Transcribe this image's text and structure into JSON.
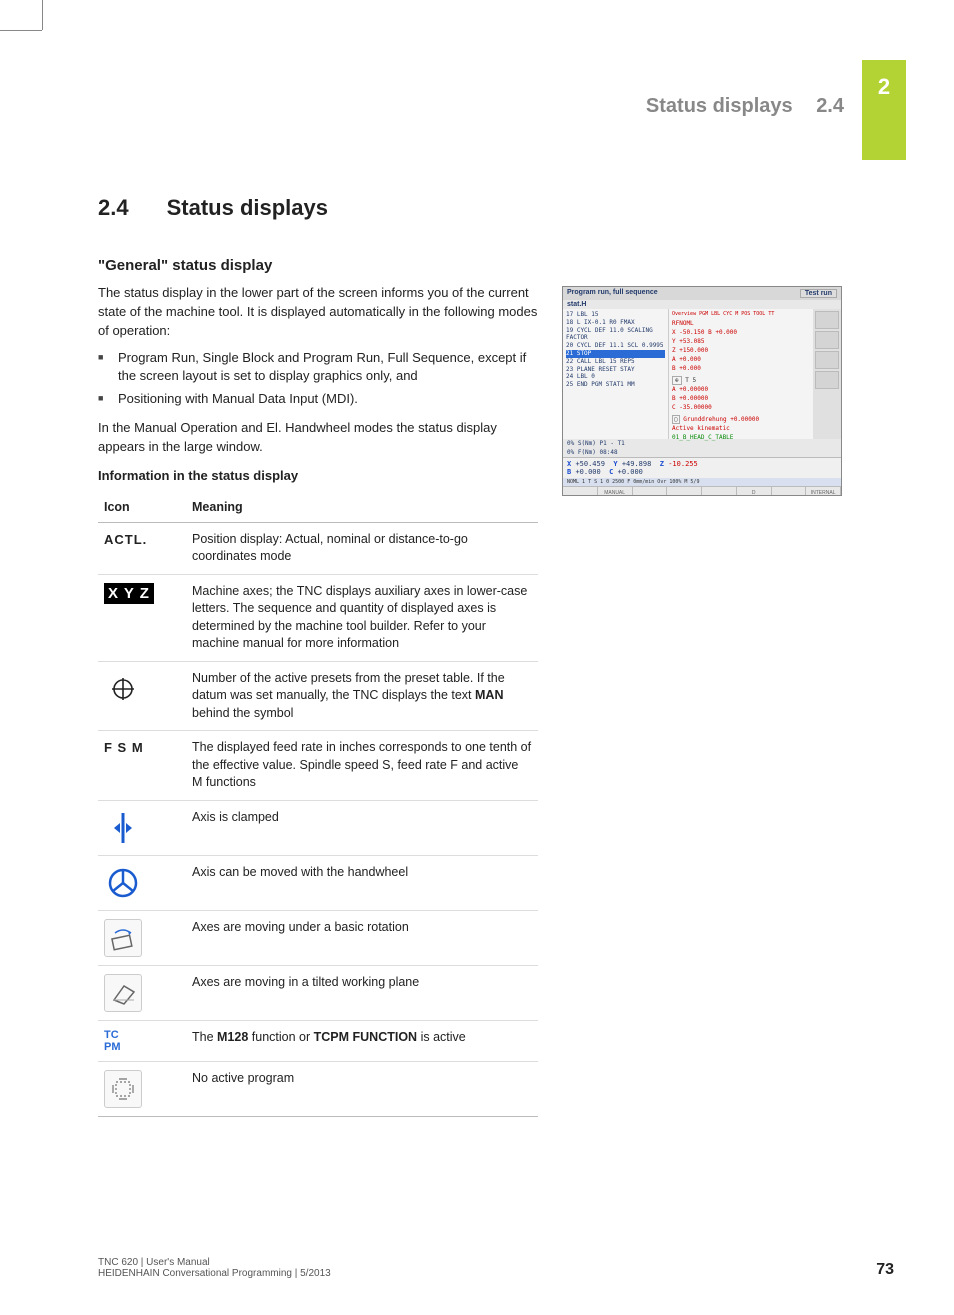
{
  "chapter_tab": "2",
  "running_head": {
    "title": "Status displays",
    "num": "2.4"
  },
  "heading": {
    "num": "2.4",
    "title": "Status displays"
  },
  "subheading": "\"General\" status display",
  "intro": "The status display in the lower part of the screen informs you of the current state of the machine tool. It is displayed automatically in the following modes of operation:",
  "bullets": [
    "Program Run, Single Block and Program Run, Full Sequence, except if the screen layout is set to display graphics only, and",
    "Positioning with Manual Data Input (MDI)."
  ],
  "after_bullets": "In the Manual Operation and El. Handwheel modes the status display appears in the large window.",
  "table_caption": "Information in the status display",
  "table": {
    "headers": [
      "Icon",
      "Meaning"
    ],
    "rows": [
      {
        "icon_type": "text",
        "icon_label": "ACTL.",
        "meaning": "Position display: Actual, nominal or distance-to-go coordinates mode"
      },
      {
        "icon_type": "xyz",
        "icon_label": "XYZ",
        "meaning": "Machine axes; the TNC displays auxiliary axes in lower-case letters. The sequence and quantity of displayed axes is determined by the machine tool builder. Refer to your machine manual for more information"
      },
      {
        "icon_type": "preset",
        "icon_label": "⊕",
        "meaning_html": "Number of the active presets from the preset table. If the datum was set manually, the TNC displays the text <b>MAN</b> behind the symbol"
      },
      {
        "icon_type": "text",
        "icon_label": "F S M",
        "meaning": "The displayed feed rate in inches corresponds to one tenth of the effective value. Spindle speed S, feed rate F and active M functions"
      },
      {
        "icon_type": "clamp",
        "icon_label": "clamp",
        "meaning": "Axis is clamped"
      },
      {
        "icon_type": "handwheel",
        "icon_label": "handwheel",
        "meaning": "Axis can be moved with the handwheel"
      },
      {
        "icon_type": "basicrot",
        "icon_label": "basic-rotation",
        "meaning": "Axes are moving under a basic rotation"
      },
      {
        "icon_type": "tilted",
        "icon_label": "tilted-plane",
        "meaning": "Axes are moving in a tilted working plane"
      },
      {
        "icon_type": "tcpm",
        "icon_label": "TCPM",
        "meaning_html": "The <b>M128</b> function or <b>TCPM FUNCTION</b> is active"
      },
      {
        "icon_type": "noprog",
        "icon_label": "no-program",
        "meaning": "No active program"
      }
    ]
  },
  "screenshot": {
    "title": "Program run, full sequence",
    "mode_btn": "Test run",
    "filename": "stat.H",
    "prog_lines": [
      "17 LBL 15",
      "18 L IX-0.1 R0 FMAX",
      "19 CYCL DEF 11.0 SCALING FACTOR",
      "20 CYCL DEF 11.1 SCL 0.9995",
      "21 STOP",
      "22 CALL LBL 15 REP5",
      "23 PLANE RESET STAY",
      "24 LBL 0",
      "25 END PGM STAT1 MM"
    ],
    "status_tabs": "Overview PGM LBL CYC M POS TOOL TT",
    "status_rpnom": "RFNOML",
    "status_vals": [
      "X   -50.150   B   +0.000",
      "Y   +53.085",
      "Z  +150.000",
      "A    +0.000",
      "B    +0.000"
    ],
    "status_t": "T  5",
    "status_abc": [
      "A  +0.00000",
      "B  +0.00000",
      "C -35.00000"
    ],
    "grundd": "Grunddrehung   +0.00000",
    "kinematic": "Active kinematic",
    "kinfile": "01_B_HEAD_C_TABLE",
    "midline1": "0% S(Nm) P1 - T1",
    "midline2": "0% F(Nm) 08:48",
    "coords": {
      "x": "+50.459",
      "y": "+49.898",
      "z": "-10.255",
      "b": "+0.000",
      "c": "+0.000"
    },
    "statusbar": "NOML   1   T   S 1 0  2500  F   0mm/min   Ovr 100%  M 5/9",
    "overrides": [
      "S100%",
      "F100%"
    ],
    "softkeys": [
      "",
      "MANUAL TRAVERSE",
      "",
      "",
      "",
      "D PARAMETER LIST",
      "",
      "INTERNAL STOP"
    ]
  },
  "footer": {
    "line1": "TNC 620 | User's Manual",
    "line2": "HEIDENHAIN Conversational Programming | 5/2013",
    "page": "73"
  },
  "colors": {
    "accent_green": "#b3d334",
    "clamp_blue": "#1a5bd0",
    "handwheel_blue": "#1a5bd0",
    "tcpm_blue": "#2a6bd6"
  }
}
